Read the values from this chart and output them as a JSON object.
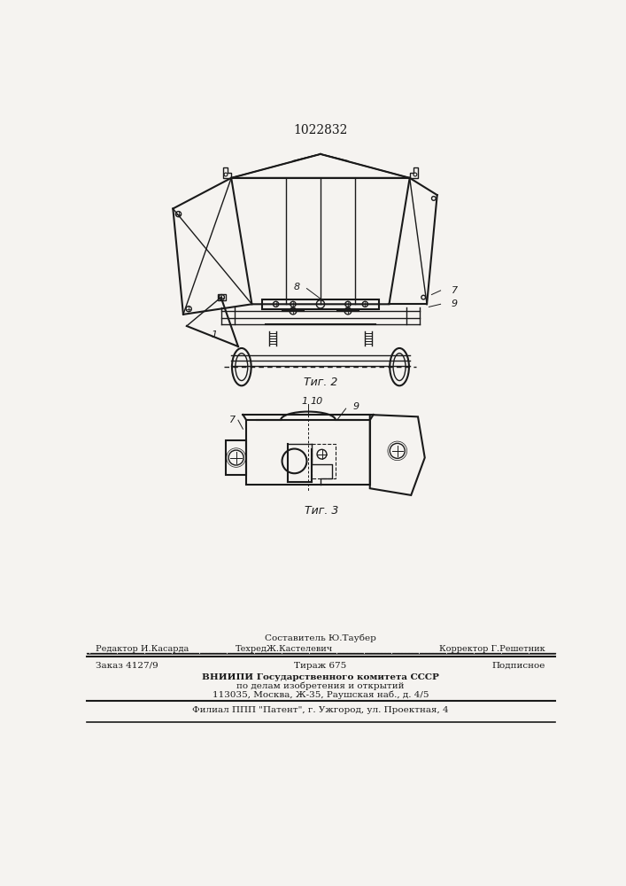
{
  "patent_number": "1022832",
  "background_color": "#f5f3f0",
  "fig2_label": "Τиг. 2",
  "fig3_label": "Τиг. 3",
  "footer_line1_center": "Составитель Ю.Таубер",
  "footer_line2_left": "Редактор И.Касарда",
  "footer_line2_center": "ТехредЖ.Кастелевич",
  "footer_line2_right": "Корректор Г.Решетник",
  "footer_line3_left": "Заказ 4127/9",
  "footer_line3_center": "Тираж 675",
  "footer_line3_right": "Подписное",
  "footer_line4": "ВНИИПИ Государственного комитета СССР",
  "footer_line5": "по делам изобретения и открытий",
  "footer_line6": "113035, Москва, Ж-35, Раушская наб., д. 4/5",
  "footer_last": "Филиал ППП \"Патент\", г. Ужгород, ул. Проектная, 4"
}
